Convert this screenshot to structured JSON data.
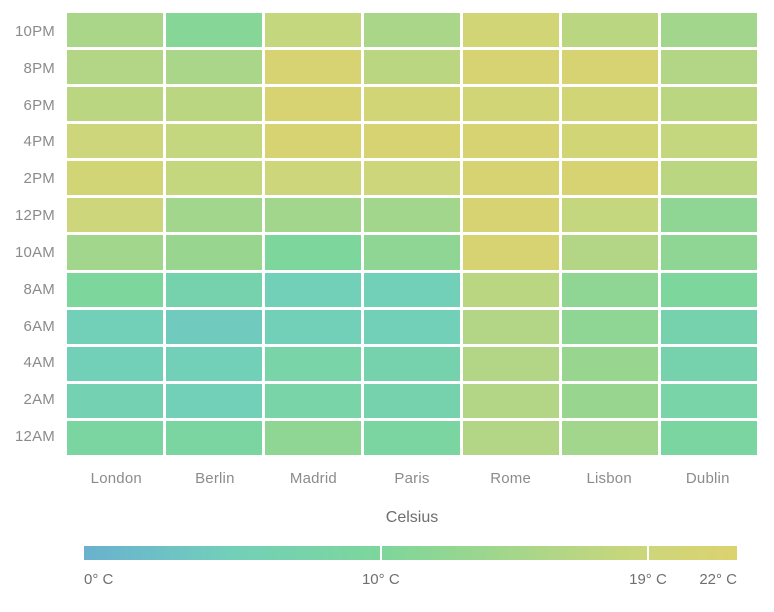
{
  "chart_data": {
    "type": "heatmap",
    "title": "",
    "xlabel": "Celsius",
    "ylabel": "",
    "x_categories": [
      "London",
      "Berlin",
      "Madrid",
      "Paris",
      "Rome",
      "Lisbon",
      "Dublin"
    ],
    "y_categories": [
      "10PM",
      "8PM",
      "6PM",
      "4PM",
      "2PM",
      "12PM",
      "10AM",
      "8AM",
      "6AM",
      "4AM",
      "2AM",
      "12AM"
    ],
    "value_unit": "° C",
    "values": [
      [
        15,
        11,
        18,
        15,
        20,
        17,
        14
      ],
      [
        16,
        15,
        21,
        17,
        21,
        21,
        16
      ],
      [
        17,
        17,
        21,
        20,
        20,
        20,
        17
      ],
      [
        19,
        18,
        21,
        21,
        21,
        20,
        18
      ],
      [
        20,
        18,
        19,
        19,
        21,
        21,
        17
      ],
      [
        19,
        14,
        14,
        14,
        21,
        18,
        12
      ],
      [
        14,
        13,
        10,
        12,
        21,
        16,
        12
      ],
      [
        10,
        7,
        5,
        5,
        17,
        12,
        10
      ],
      [
        5,
        4,
        5,
        5,
        16,
        12,
        7
      ],
      [
        5,
        5,
        8,
        7,
        16,
        13,
        7
      ],
      [
        6,
        5,
        8,
        7,
        16,
        13,
        8
      ],
      [
        9,
        9,
        12,
        9,
        16,
        14,
        9
      ]
    ],
    "colorscale": {
      "min": 0,
      "max": 22,
      "stops": [
        {
          "t": 0,
          "color": "#6ab1ce"
        },
        {
          "t": 2.5,
          "color": "#6dc0c6"
        },
        {
          "t": 5,
          "color": "#72d0b8"
        },
        {
          "t": 10,
          "color": "#7dd69b"
        },
        {
          "t": 19,
          "color": "#cdd67a"
        },
        {
          "t": 22,
          "color": "#dcd26f"
        }
      ]
    },
    "legend": {
      "ticks": [
        {
          "value": 0,
          "label": "0° C",
          "separator": false
        },
        {
          "value": 10,
          "label": "10° C",
          "separator": true
        },
        {
          "value": 19,
          "label": "19° C",
          "separator": true
        },
        {
          "value": 22,
          "label": "22° C",
          "separator": false
        }
      ]
    },
    "layout": {
      "grid_gap_color": "#ffffff",
      "axis_label_color": "#8b8b8b",
      "legend_label_color": "#6f6f6f"
    }
  }
}
